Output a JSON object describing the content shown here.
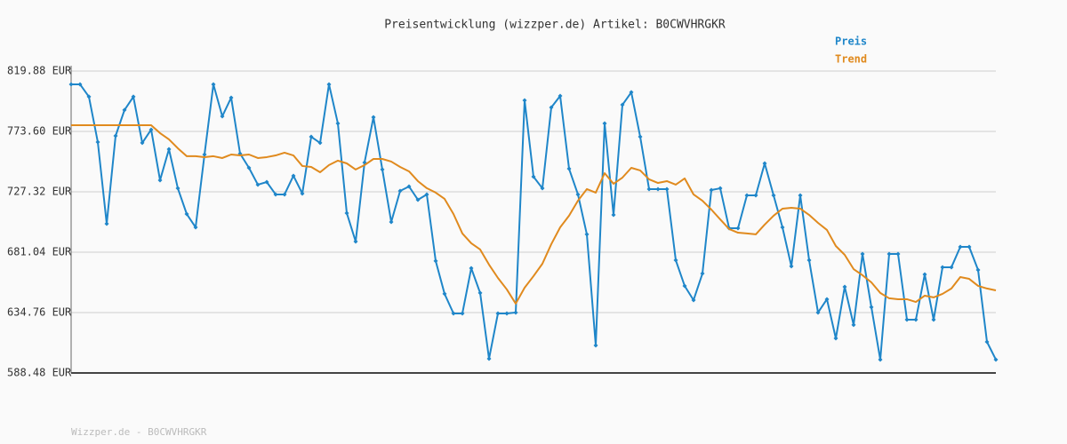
{
  "chart_data": {
    "type": "line",
    "title": "Preisentwicklung (wizzper.de) Artikel: B0CWVHRGKR",
    "footer": "Wizzper.de - B0CWVHRGKR",
    "categories": [
      null,
      null,
      null,
      null,
      null,
      null,
      null,
      null,
      null,
      null,
      null,
      null,
      null,
      null,
      null,
      null,
      null,
      null,
      null,
      null,
      null,
      null,
      null,
      null,
      null,
      null,
      null,
      null,
      null,
      null,
      null,
      null,
      null,
      null,
      null,
      null,
      null,
      null,
      null,
      null,
      null,
      null,
      null,
      null,
      null,
      null,
      null,
      null,
      null,
      null,
      null,
      null,
      null,
      null,
      null,
      null,
      null,
      null,
      null,
      null,
      null,
      null,
      null,
      null,
      null,
      null,
      null,
      null,
      null,
      null,
      null,
      null,
      null,
      null,
      null,
      null,
      null,
      null,
      null,
      null,
      null,
      null,
      null,
      null,
      null,
      null,
      null,
      null,
      null,
      null,
      null,
      null,
      null,
      null,
      null,
      null,
      null,
      null,
      null,
      null,
      null,
      null,
      null,
      null,
      null
    ],
    "series": [
      {
        "name": "Preis",
        "color": "#1f86c9",
        "markers": true,
        "values": [
          809.7,
          809.7,
          800.2,
          765.4,
          702.8,
          770.2,
          790.0,
          800.2,
          764.8,
          775.0,
          736.2,
          760.0,
          730.0,
          710.3,
          700.1,
          755.9,
          809.7,
          785.2,
          799.5,
          756.6,
          745.7,
          732.8,
          734.8,
          725.3,
          725.3,
          739.6,
          726.0,
          769.5,
          764.8,
          809.7,
          779.7,
          711.0,
          689.2,
          749.8,
          784.5,
          744.4,
          704.2,
          728.0,
          731.4,
          721.2,
          725.3,
          674.3,
          649.1,
          634.1,
          634.1,
          668.8,
          649.8,
          599.4,
          634.1,
          634.1,
          634.8,
          797.4,
          738.9,
          730.0,
          792.0,
          800.8,
          745.0,
          725.3,
          694.7,
          609.6,
          779.7,
          709.6,
          794.0,
          803.6,
          769.5,
          729.4,
          729.4,
          729.4,
          674.9,
          655.2,
          644.3,
          664.7,
          728.7,
          730.0,
          699.4,
          699.4,
          724.6,
          724.6,
          749.1,
          724.6,
          700.1,
          670.2,
          724.6,
          674.9,
          634.8,
          645.0,
          615.0,
          654.5,
          625.3,
          679.7,
          638.9,
          598.7,
          679.7,
          679.7,
          629.3,
          629.3,
          664.0,
          629.3,
          669.5,
          669.5,
          685.1,
          685.1,
          667.4,
          612.3,
          598.7
        ]
      },
      {
        "name": "Trend",
        "color": "#e08a1e",
        "markers": false,
        "values": [
          778.4,
          778.4,
          778.4,
          778.4,
          778.4,
          778.4,
          778.4,
          778.4,
          778.4,
          778.4,
          772.3,
          767.5,
          760.7,
          754.6,
          754.6,
          753.9,
          754.6,
          753.2,
          755.9,
          755.2,
          755.9,
          753.2,
          753.9,
          755.2,
          757.3,
          755.2,
          747.1,
          746.4,
          742.3,
          747.8,
          751.2,
          749.1,
          744.4,
          747.8,
          752.5,
          752.5,
          750.5,
          746.4,
          743.0,
          735.5,
          730.1,
          726.7,
          721.9,
          710.3,
          695.4,
          687.9,
          683.1,
          671.5,
          661.3,
          652.5,
          641.6,
          653.8,
          662.7,
          672.2,
          687.2,
          700.1,
          709.0,
          720.5,
          729.4,
          726.7,
          741.6,
          733.5,
          738.2,
          745.7,
          743.7,
          736.9,
          734.1,
          735.5,
          732.8,
          737.6,
          725.3,
          720.5,
          713.7,
          706.2,
          698.8,
          696.0,
          695.4,
          694.7,
          702.2,
          709.0,
          714.4,
          715.1,
          714.4,
          709.6,
          703.5,
          698.1,
          685.8,
          679.0,
          668.1,
          663.4,
          657.9,
          649.8,
          645.7,
          645.0,
          645.0,
          642.9,
          647.7,
          646.4,
          649.1,
          653.2,
          662.0,
          660.6,
          655.2,
          653.2,
          651.8
        ]
      }
    ],
    "ylim": [
      588.48,
      819.88
    ],
    "yticks": [
      {
        "value": 588.48,
        "label": "588.48 EUR"
      },
      {
        "value": 634.76,
        "label": "634.76 EUR"
      },
      {
        "value": 681.04,
        "label": "681.04 EUR"
      },
      {
        "value": 727.32,
        "label": "727.32 EUR"
      },
      {
        "value": 773.6,
        "label": "773.60 EUR"
      },
      {
        "value": 819.88,
        "label": "819.88 EUR"
      }
    ],
    "grid": true,
    "legend": "top-right"
  }
}
